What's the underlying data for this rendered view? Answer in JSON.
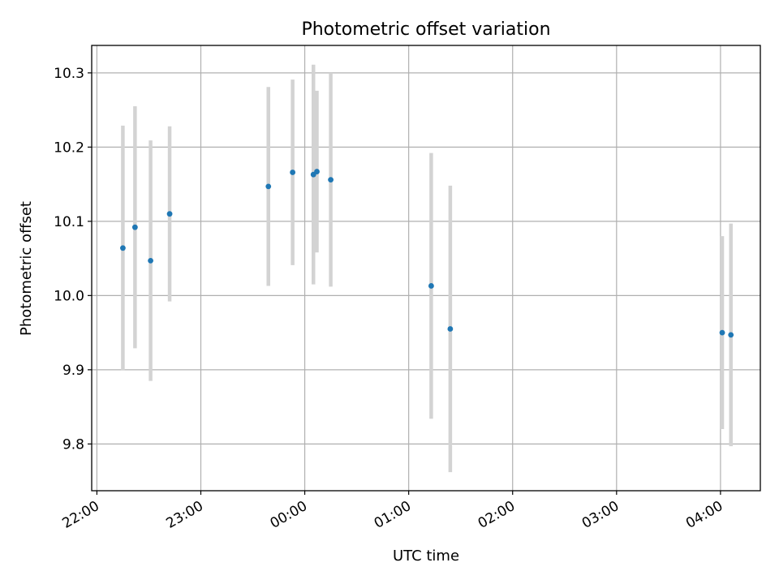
{
  "chart_data": {
    "type": "scatter",
    "title": "Photometric offset variation",
    "xlabel": "UTC time",
    "ylabel": "Photometric offset",
    "x_unit": "UTC time of night (22:00 to 04:00+)",
    "xlim": [
      "21:57",
      "04:23"
    ],
    "ylim": [
      9.737,
      10.337
    ],
    "x_ticks": [
      "22:00",
      "23:00",
      "00:00",
      "01:00",
      "02:00",
      "03:00",
      "04:00"
    ],
    "y_ticks": [
      9.8,
      9.9,
      10.0,
      10.1,
      10.2,
      10.3
    ],
    "y_tick_labels": [
      "9.8",
      "9.9",
      "10.0",
      "10.1",
      "10.2",
      "10.3"
    ],
    "grid": true,
    "point_color": "#1f77b4",
    "errorbar_color": "#d3d3d3",
    "points": [
      {
        "time": "22:15",
        "y": 10.064,
        "err": 0.165
      },
      {
        "time": "22:22",
        "y": 10.092,
        "err": 0.163
      },
      {
        "time": "22:31",
        "y": 10.047,
        "err": 0.162
      },
      {
        "time": "22:42",
        "y": 10.11,
        "err": 0.118
      },
      {
        "time": "23:39",
        "y": 10.147,
        "err": 0.134
      },
      {
        "time": "23:53",
        "y": 10.166,
        "err": 0.125
      },
      {
        "time": "00:05",
        "y": 10.163,
        "err": 0.148
      },
      {
        "time": "00:07",
        "y": 10.167,
        "err": 0.109
      },
      {
        "time": "00:15",
        "y": 10.156,
        "err": 0.144
      },
      {
        "time": "01:13",
        "y": 10.013,
        "err": 0.179
      },
      {
        "time": "01:24",
        "y": 9.955,
        "err": 0.193
      },
      {
        "time": "04:01",
        "y": 9.95,
        "err": 0.13
      },
      {
        "time": "04:06",
        "y": 9.947,
        "err": 0.15
      }
    ]
  }
}
